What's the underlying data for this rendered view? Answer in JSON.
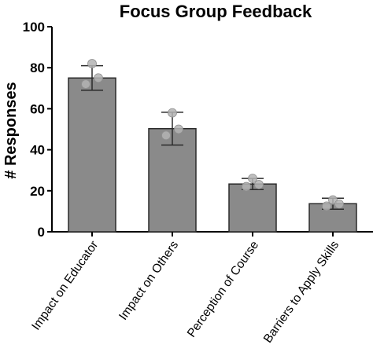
{
  "chart_data": {
    "type": "bar",
    "title": "Focus Group Feedback",
    "xlabel": "",
    "ylabel": "# Responses",
    "ylim": [
      0,
      100
    ],
    "yticks": [
      0,
      20,
      40,
      60,
      80,
      100
    ],
    "categories": [
      "Impact on Educator",
      "Impact on Others",
      "Perception of Course",
      "Barriers to Apply Skills"
    ],
    "values": [
      75,
      50.3,
      23.3,
      13.7
    ],
    "error": [
      6,
      8,
      2.7,
      2.7
    ],
    "points": [
      [
        82,
        75,
        72
      ],
      [
        58,
        50,
        47
      ],
      [
        26,
        23,
        22
      ],
      [
        15.5,
        13.5,
        12.5
      ]
    ],
    "grid": false,
    "legend": "none",
    "colors": {
      "bar_fill": "#8a8a8a",
      "bar_stroke": "#2b2b2b",
      "point_fill": "#b3b3b3",
      "axis": "#000000"
    }
  }
}
